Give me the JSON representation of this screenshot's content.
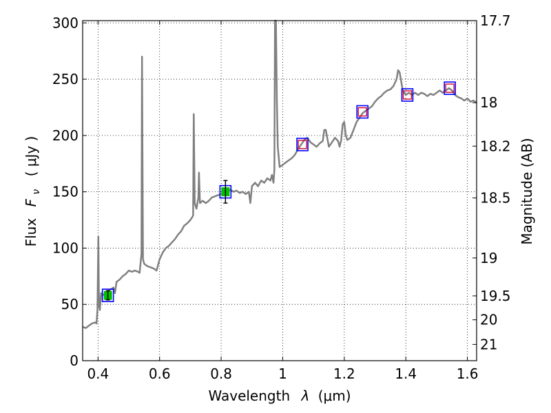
{
  "chart_data": {
    "type": "line",
    "xlabel_text": "Wavelength",
    "xlabel_symbol": "λ",
    "xlabel_unit": "(μm)",
    "ylabel_text": "Flux",
    "ylabel_symbol": "F",
    "ylabel_symbol_sub": "ν",
    "ylabel_unit": "( μJy )",
    "y2label": "Magnitude (AB)",
    "xlim": [
      0.35,
      1.63
    ],
    "ylim": [
      0,
      302
    ],
    "grid": true,
    "x_ticks": [
      {
        "value": 0.4,
        "label": "0.4"
      },
      {
        "value": 0.6,
        "label": "0.6"
      },
      {
        "value": 0.8,
        "label": "0.8"
      },
      {
        "value": 1.0,
        "label": "1"
      },
      {
        "value": 1.2,
        "label": "1.2"
      },
      {
        "value": 1.4,
        "label": "1.4"
      },
      {
        "value": 1.6,
        "label": "1.6"
      }
    ],
    "y_ticks": [
      {
        "value": 0,
        "label": "0"
      },
      {
        "value": 50,
        "label": "50"
      },
      {
        "value": 100,
        "label": "100"
      },
      {
        "value": 150,
        "label": "150"
      },
      {
        "value": 200,
        "label": "200"
      },
      {
        "value": 250,
        "label": "250"
      },
      {
        "value": 300,
        "label": "300"
      }
    ],
    "y2_ticks": [
      {
        "mag": 17.7,
        "label": "17.7"
      },
      {
        "mag": 18.0,
        "label": "18"
      },
      {
        "mag": 18.2,
        "label": "18.2"
      },
      {
        "mag": 18.5,
        "label": "18.5"
      },
      {
        "mag": 19.0,
        "label": "19"
      },
      {
        "mag": 19.5,
        "label": "19.5"
      },
      {
        "mag": 20.0,
        "label": "20"
      },
      {
        "mag": 21.0,
        "label": "21"
      }
    ],
    "spectrum": {
      "color": "#808080",
      "points": [
        [
          0.35,
          30
        ],
        [
          0.36,
          29
        ],
        [
          0.37,
          31
        ],
        [
          0.38,
          33
        ],
        [
          0.39,
          34
        ],
        [
          0.395,
          33
        ],
        [
          0.398,
          45
        ],
        [
          0.401,
          110
        ],
        [
          0.403,
          50
        ],
        [
          0.406,
          45
        ],
        [
          0.41,
          60
        ],
        [
          0.42,
          58
        ],
        [
          0.43,
          62
        ],
        [
          0.44,
          63
        ],
        [
          0.45,
          65
        ],
        [
          0.455,
          60
        ],
        [
          0.46,
          70
        ],
        [
          0.47,
          72
        ],
        [
          0.48,
          75
        ],
        [
          0.49,
          77
        ],
        [
          0.5,
          80
        ],
        [
          0.51,
          79
        ],
        [
          0.52,
          80
        ],
        [
          0.53,
          79
        ],
        [
          0.535,
          78
        ],
        [
          0.541,
          95
        ],
        [
          0.543,
          270
        ],
        [
          0.546,
          90
        ],
        [
          0.55,
          86
        ],
        [
          0.56,
          84
        ],
        [
          0.57,
          83
        ],
        [
          0.58,
          82
        ],
        [
          0.59,
          80
        ],
        [
          0.6,
          90
        ],
        [
          0.61,
          96
        ],
        [
          0.62,
          100
        ],
        [
          0.63,
          102
        ],
        [
          0.64,
          105
        ],
        [
          0.65,
          108
        ],
        [
          0.66,
          112
        ],
        [
          0.67,
          115
        ],
        [
          0.68,
          120
        ],
        [
          0.69,
          122
        ],
        [
          0.7,
          125
        ],
        [
          0.705,
          127
        ],
        [
          0.709,
          129
        ],
        [
          0.711,
          219
        ],
        [
          0.714,
          140
        ],
        [
          0.72,
          135
        ],
        [
          0.726,
          145
        ],
        [
          0.728,
          167
        ],
        [
          0.731,
          140
        ],
        [
          0.74,
          142
        ],
        [
          0.75,
          140
        ],
        [
          0.76,
          142
        ],
        [
          0.77,
          145
        ],
        [
          0.78,
          146
        ],
        [
          0.79,
          147
        ],
        [
          0.8,
          148
        ],
        [
          0.81,
          150
        ],
        [
          0.82,
          149
        ],
        [
          0.83,
          152
        ],
        [
          0.84,
          150
        ],
        [
          0.85,
          151
        ],
        [
          0.86,
          149
        ],
        [
          0.87,
          150
        ],
        [
          0.88,
          148
        ],
        [
          0.89,
          150
        ],
        [
          0.895,
          140
        ],
        [
          0.9,
          155
        ],
        [
          0.91,
          158
        ],
        [
          0.92,
          155
        ],
        [
          0.93,
          160
        ],
        [
          0.94,
          158
        ],
        [
          0.95,
          162
        ],
        [
          0.96,
          160
        ],
        [
          0.965,
          165
        ],
        [
          0.97,
          158
        ],
        [
          0.973,
          170
        ],
        [
          0.975,
          302
        ],
        [
          0.978,
          302
        ],
        [
          0.981,
          230
        ],
        [
          0.984,
          190
        ],
        [
          0.99,
          172
        ],
        [
          1.0,
          174
        ],
        [
          1.01,
          176
        ],
        [
          1.02,
          178
        ],
        [
          1.03,
          180
        ],
        [
          1.04,
          183
        ],
        [
          1.05,
          188
        ],
        [
          1.06,
          192
        ],
        [
          1.07,
          196
        ],
        [
          1.08,
          198
        ],
        [
          1.09,
          194
        ],
        [
          1.1,
          192
        ],
        [
          1.11,
          190
        ],
        [
          1.12,
          193
        ],
        [
          1.13,
          195
        ],
        [
          1.135,
          205
        ],
        [
          1.14,
          205
        ],
        [
          1.15,
          190
        ],
        [
          1.16,
          194
        ],
        [
          1.17,
          198
        ],
        [
          1.18,
          195
        ],
        [
          1.185,
          190
        ],
        [
          1.19,
          196
        ],
        [
          1.195,
          210
        ],
        [
          1.2,
          212
        ],
        [
          1.205,
          200
        ],
        [
          1.21,
          196
        ],
        [
          1.22,
          198
        ],
        [
          1.23,
          205
        ],
        [
          1.24,
          212
        ],
        [
          1.25,
          216
        ],
        [
          1.26,
          220
        ],
        [
          1.27,
          222
        ],
        [
          1.28,
          224
        ],
        [
          1.29,
          226
        ],
        [
          1.3,
          230
        ],
        [
          1.31,
          233
        ],
        [
          1.32,
          235
        ],
        [
          1.33,
          238
        ],
        [
          1.34,
          240
        ],
        [
          1.35,
          241
        ],
        [
          1.36,
          244
        ],
        [
          1.37,
          250
        ],
        [
          1.375,
          258
        ],
        [
          1.38,
          256
        ],
        [
          1.385,
          248
        ],
        [
          1.39,
          240
        ],
        [
          1.4,
          236
        ],
        [
          1.41,
          238
        ],
        [
          1.42,
          236
        ],
        [
          1.43,
          238
        ],
        [
          1.44,
          236
        ],
        [
          1.45,
          238
        ],
        [
          1.46,
          237
        ],
        [
          1.47,
          235
        ],
        [
          1.48,
          237
        ],
        [
          1.49,
          236
        ],
        [
          1.5,
          238
        ],
        [
          1.51,
          240
        ],
        [
          1.52,
          238
        ],
        [
          1.53,
          240
        ],
        [
          1.54,
          242
        ],
        [
          1.55,
          240
        ],
        [
          1.56,
          236
        ],
        [
          1.57,
          234
        ],
        [
          1.58,
          233
        ],
        [
          1.59,
          231
        ],
        [
          1.6,
          233
        ],
        [
          1.61,
          230
        ],
        [
          1.62,
          231
        ],
        [
          1.63,
          229
        ]
      ]
    },
    "photometry": [
      {
        "x": 0.432,
        "y": 58,
        "fill": "#00c000",
        "err": 4,
        "type": "measured"
      },
      {
        "x": 0.814,
        "y": 150,
        "fill": "#00c000",
        "err": 10,
        "type": "measured"
      },
      {
        "x": 1.064,
        "y": 192,
        "fill": "none",
        "err": 0,
        "type": "synthetic"
      },
      {
        "x": 1.259,
        "y": 221,
        "fill": "none",
        "err": 0,
        "type": "synthetic"
      },
      {
        "x": 1.405,
        "y": 236,
        "fill": "none",
        "err": 0,
        "type": "synthetic"
      },
      {
        "x": 1.543,
        "y": 242,
        "fill": "none",
        "err": 0,
        "type": "synthetic"
      }
    ],
    "colors": {
      "box_outer": "#0000ff",
      "box_inner": "#d8002a",
      "marker_fill": "#00c000",
      "errbar": "#000000"
    }
  }
}
